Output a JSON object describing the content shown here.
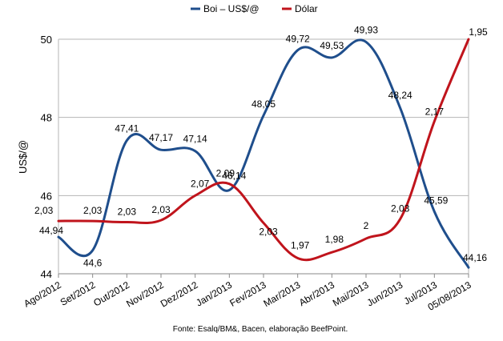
{
  "chart_data": {
    "type": "line",
    "title": "",
    "xlabel": "",
    "ylabel": "US$/@",
    "ylim": [
      44,
      50
    ],
    "yticks": [
      44,
      46,
      48,
      50
    ],
    "grid": true,
    "legend_position": "top",
    "categories": [
      "Ago/2012",
      "Set/2012",
      "Out/2012",
      "Nov/2012",
      "Dez/2012",
      "Jan/2013",
      "Fev/2013",
      "Mar/2013",
      "Abr/2013",
      "Mai/2013",
      "Jun/2013",
      "Jul/2013",
      "05/08/2013"
    ],
    "series": [
      {
        "name": "Boi – US$/@",
        "color": "#1f4e8c",
        "values": [
          44.94,
          44.6,
          47.41,
          47.17,
          47.14,
          46.14,
          48.05,
          49.72,
          49.53,
          49.93,
          48.24,
          45.59,
          44.16
        ],
        "labels": [
          "44,94",
          "44,6",
          "47,41",
          "47,17",
          "47,14",
          "46,14",
          "48,05",
          "49,72",
          "49,53",
          "49,93",
          "48,24",
          "45,59",
          "44,16"
        ]
      },
      {
        "name": "Dólar",
        "color": "#c0141c",
        "values": [
          2.03,
          2.03,
          2.03,
          2.03,
          2.07,
          2.09,
          2.03,
          1.97,
          1.98,
          2.0,
          2.03,
          2.17,
          1.95
        ],
        "labels": [
          "2,03",
          "2,03",
          "2,03",
          "2,03",
          "2,07",
          "2,09",
          "2,03",
          "1,97",
          "1,98",
          "2",
          "2,03",
          "2,17",
          "1,95"
        ],
        "plot_y": [
          45.35,
          45.35,
          45.32,
          45.37,
          46.0,
          46.3,
          45.3,
          44.4,
          44.55,
          44.9,
          45.4,
          47.9,
          50.0
        ]
      }
    ],
    "source_note": "Fonte: Esalq/BM&, Bacen, elaboração BeefPoint."
  }
}
